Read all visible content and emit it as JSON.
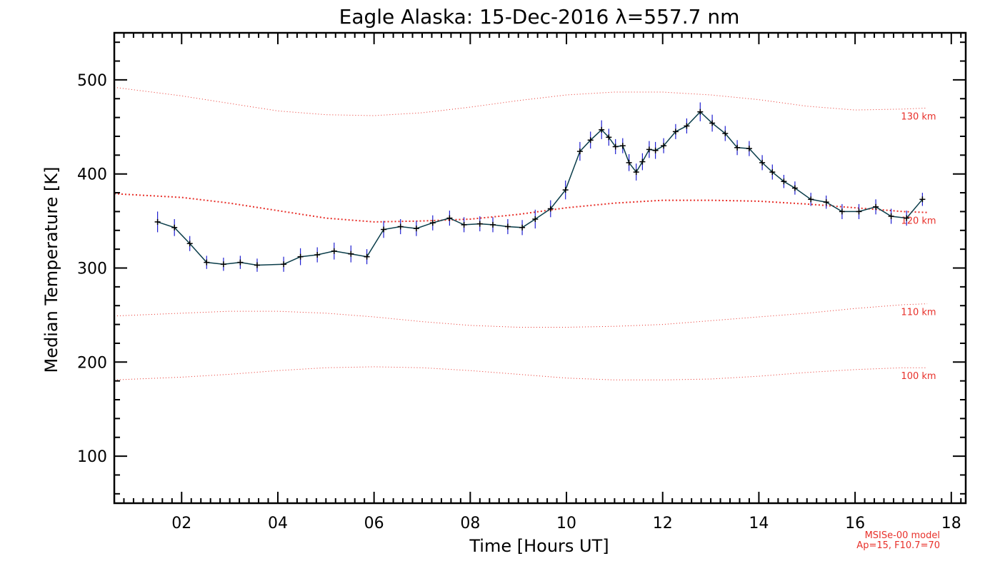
{
  "chart_data": {
    "type": "line",
    "title": "Eagle Alaska: 15-Dec-2016 λ=557.7 nm",
    "xlabel": "Time [Hours UT]",
    "ylabel": "Median Temperature [K]",
    "xlim": [
      0.6,
      18.3
    ],
    "ylim": [
      50,
      550
    ],
    "x_ticks": [
      2,
      4,
      6,
      8,
      10,
      12,
      14,
      16,
      18
    ],
    "x_tick_labels": [
      "02",
      "04",
      "06",
      "08",
      "10",
      "12",
      "14",
      "16",
      "18"
    ],
    "y_ticks": [
      100,
      200,
      300,
      400,
      500
    ],
    "y_tick_labels": [
      "100",
      "200",
      "300",
      "400",
      "500"
    ],
    "grid": false,
    "colors": {
      "data_line": "#0a3d4a",
      "error_bars": "#1f1fd0",
      "markers": "#000000",
      "model": "#e8302a",
      "axes": "#000000"
    },
    "series": [
      {
        "kind": "measured",
        "x": [
          1.5,
          1.85,
          2.17,
          2.52,
          2.87,
          3.22,
          3.57,
          4.12,
          4.47,
          4.82,
          5.17,
          5.52,
          5.85,
          6.2,
          6.55,
          6.88,
          7.22,
          7.57,
          7.87,
          8.2,
          8.47,
          8.78,
          9.08,
          9.35,
          9.67,
          9.98,
          10.28,
          10.5,
          10.73,
          10.88,
          11.02,
          11.17,
          11.3,
          11.45,
          11.58,
          11.72,
          11.85,
          12.02,
          12.27,
          12.5,
          12.78,
          13.03,
          13.3,
          13.55,
          13.8,
          14.07,
          14.28,
          14.52,
          14.75,
          15.08,
          15.4,
          15.73,
          16.08,
          16.43,
          16.75,
          17.07,
          17.4
        ],
        "y": [
          349,
          343,
          326,
          306,
          304,
          306,
          303,
          304,
          312,
          314,
          318,
          315,
          312,
          341,
          344,
          342,
          348,
          353,
          346,
          347,
          346,
          344,
          343,
          352,
          363,
          383,
          424,
          436,
          447,
          439,
          429,
          430,
          412,
          402,
          413,
          426,
          425,
          430,
          445,
          451,
          466,
          454,
          443,
          428,
          427,
          412,
          402,
          392,
          385,
          373,
          370,
          360,
          360,
          365,
          355,
          353,
          373
        ],
        "error": [
          11,
          9,
          8,
          7,
          7,
          7,
          7,
          8,
          9,
          8,
          9,
          9,
          8,
          9,
          8,
          8,
          8,
          8,
          8,
          8,
          8,
          8,
          8,
          10,
          9,
          10,
          10,
          9,
          10,
          9,
          8,
          8,
          9,
          9,
          9,
          9,
          9,
          8,
          8,
          8,
          10,
          9,
          8,
          8,
          8,
          8,
          8,
          7,
          7,
          7,
          7,
          8,
          8,
          8,
          8,
          8,
          7
        ]
      }
    ],
    "model_curves": [
      {
        "label": "130 km",
        "x": [
          0.6,
          2,
          3,
          4,
          5,
          6,
          7,
          8,
          9,
          10,
          11,
          12,
          13,
          14,
          15,
          16,
          17,
          17.5
        ],
        "y": [
          492,
          483,
          475,
          467,
          463,
          462,
          465,
          471,
          478,
          484,
          487,
          487,
          484,
          479,
          472,
          468,
          469,
          470
        ]
      },
      {
        "label": "120 km",
        "x": [
          0.6,
          2,
          3,
          4,
          5,
          6,
          7,
          8,
          9,
          10,
          11,
          12,
          13,
          14,
          15,
          16,
          17,
          17.5
        ],
        "y": [
          379,
          375,
          369,
          361,
          353,
          349,
          350,
          352,
          357,
          364,
          369,
          372,
          372,
          371,
          368,
          364,
          360,
          359
        ]
      },
      {
        "label": "110 km",
        "x": [
          0.6,
          2,
          3,
          4,
          5,
          6,
          7,
          8,
          9,
          10,
          11,
          12,
          13,
          14,
          15,
          16,
          17,
          17.5
        ],
        "y": [
          249,
          252,
          254,
          254,
          252,
          248,
          243,
          239,
          237,
          237,
          238,
          240,
          244,
          248,
          252,
          257,
          261,
          262
        ]
      },
      {
        "label": "100 km",
        "x": [
          0.6,
          2,
          3,
          4,
          5,
          6,
          7,
          8,
          9,
          10,
          11,
          12,
          13,
          14,
          15,
          16,
          17,
          17.5
        ],
        "y": [
          181,
          184,
          187,
          191,
          194,
          195,
          194,
          191,
          187,
          183,
          181,
          181,
          182,
          185,
          189,
          192,
          194,
          194
        ]
      }
    ],
    "annotations": [
      "MSISe-00 model",
      "Ap=15, F10.7=70"
    ]
  }
}
